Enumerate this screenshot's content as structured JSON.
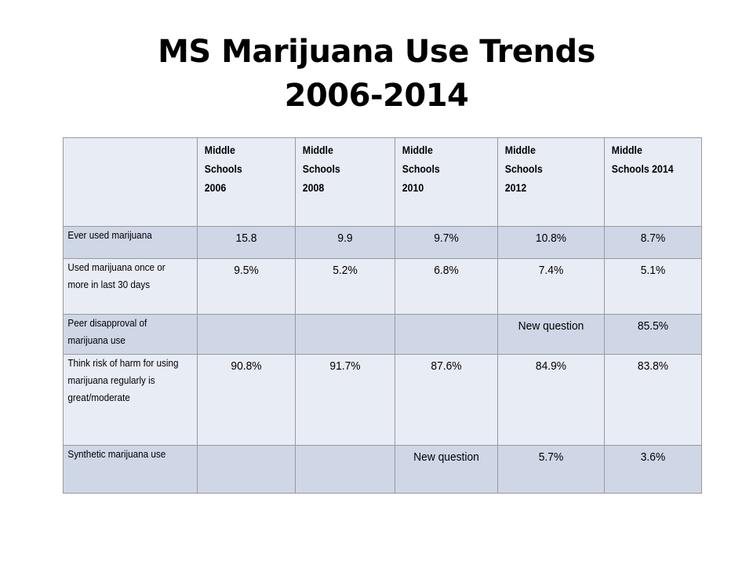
{
  "title": {
    "line1": "MS Marijuana Use Trends",
    "line2": "2006-2014"
  },
  "table": {
    "headers": [
      "",
      "Middle\nSchools\n2006",
      "Middle\nSchools\n2008",
      "Middle\nSchools\n 2010",
      "Middle\nSchools\n 2012",
      "Middle\nSchools 2014"
    ],
    "rows": [
      {
        "label": "Ever used marijuana",
        "values": [
          "15.8",
          "9.9",
          "9.7%",
          "10.8%",
          "8.7%"
        ]
      },
      {
        "label": "Used marijuana once or more in last 30 days",
        "values": [
          "9.5%",
          "5.2%",
          "6.8%",
          "7.4%",
          "5.1%"
        ]
      },
      {
        "label": "Peer disapproval of marijuana use",
        "values": [
          "",
          "",
          "",
          "New question",
          "85.5%"
        ]
      },
      {
        "label": "Think risk of harm for using marijuana regularly is great/moderate",
        "values": [
          "90.8%",
          "91.7%",
          "87.6%",
          "84.9%",
          "83.8%"
        ]
      },
      {
        "label": "Synthetic marijuana use",
        "values": [
          "",
          "",
          "New question",
          "5.7%",
          "3.6%"
        ]
      }
    ]
  }
}
